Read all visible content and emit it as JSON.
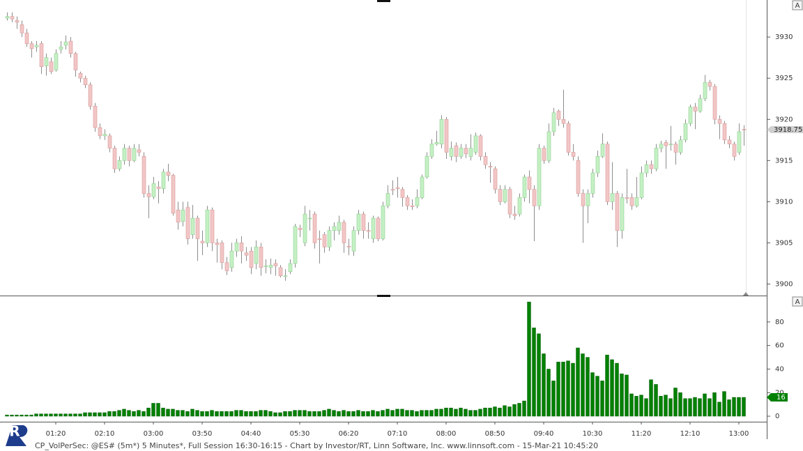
{
  "logo": "R",
  "chart_data": [
    {
      "type": "candlestick",
      "button": "A",
      "up_color": "#c4f0c4",
      "down_color": "#f2c6c6",
      "wick_color": "#8c8c8c",
      "ylim": [
        3898.6,
        3934.5
      ],
      "yticks": [
        3900,
        3905,
        3910,
        3915,
        3920,
        3925,
        3930
      ],
      "open": [
        3932.3,
        3932.5,
        3932,
        3931.5,
        3930.5,
        3929.2,
        3928.8,
        3929.2,
        3926.5,
        3927,
        3926,
        3928.5,
        3929,
        3929.5,
        3928,
        3925.6,
        3925,
        3924.2,
        3921.6,
        3919,
        3918,
        3918,
        3916.5,
        3914,
        3915,
        3916.5,
        3915,
        3916.3,
        3915.5,
        3911,
        3910.6,
        3911.8,
        3911.6,
        3913.6,
        3913.2,
        3909,
        3907.6,
        3909.3,
        3906,
        3908,
        3905.2,
        3905,
        3909,
        3905,
        3905,
        3902.6,
        3902,
        3904,
        3905,
        3903.8,
        3904,
        3902.5,
        3904.5,
        3902.2,
        3902,
        3902.5,
        3902,
        3901,
        3901.5,
        3902.5,
        3906.8,
        3905,
        3908,
        3908.5,
        3905.5,
        3906,
        3904.5,
        3906.5,
        3906.5,
        3907.5,
        3904.6,
        3904,
        3906.5,
        3908.5,
        3906.5,
        3905.5,
        3908,
        3905.5,
        3909.5,
        3911.5,
        3911.7,
        3911.5,
        3910.5,
        3909.5,
        3909.5,
        3910.5,
        3913,
        3915.5,
        3917,
        3917,
        3920,
        3915.5,
        3916.8,
        3915.5,
        3916.5,
        3915.5,
        3916,
        3918,
        3915.5,
        3914.3,
        3914,
        3911.5,
        3910,
        3911.5,
        3908.5,
        3908.5,
        3910.5,
        3913,
        3911.5,
        3909.5,
        3916.5,
        3915,
        3918.5,
        3921,
        3920,
        3919.5,
        3916,
        3915,
        3911,
        3909.5,
        3911,
        3913.5,
        3915.5,
        3917,
        3910,
        3911,
        3906.5,
        3910.5,
        3910.5,
        3909.5,
        3910.5,
        3913.5,
        3914.5,
        3914,
        3916.5,
        3917.2,
        3917,
        3917,
        3916,
        3917.5,
        3919.5,
        3921.5,
        3921,
        3922.5,
        3924.5,
        3924,
        3920,
        3919.5,
        3917.5,
        3917,
        3916,
        3918.8
      ],
      "high": [
        3933,
        3933,
        3932.5,
        3932,
        3931,
        3929.5,
        3929.5,
        3929.5,
        3928,
        3927.5,
        3928.5,
        3929.5,
        3930.2,
        3930,
        3928.2,
        3925.8,
        3925.3,
        3924.5,
        3922,
        3919.5,
        3918.8,
        3918.3,
        3916.8,
        3915.5,
        3917,
        3916.8,
        3917,
        3917,
        3916,
        3912,
        3913,
        3912.5,
        3914,
        3914.6,
        3913.4,
        3910,
        3910,
        3910,
        3909.6,
        3908.3,
        3906.5,
        3909.5,
        3909.3,
        3905.5,
        3905.3,
        3903.3,
        3905,
        3905.5,
        3905.8,
        3904.5,
        3904.5,
        3905.3,
        3905,
        3903,
        3903.1,
        3903,
        3902.3,
        3901.8,
        3903,
        3907.3,
        3907.2,
        3909.5,
        3909,
        3908.8,
        3906.5,
        3906.3,
        3907,
        3907.5,
        3908.3,
        3907.8,
        3905.5,
        3907,
        3909,
        3908.8,
        3907.5,
        3908.3,
        3908.2,
        3910,
        3912,
        3912.6,
        3913,
        3911.8,
        3910.8,
        3910.3,
        3911.5,
        3913.3,
        3916,
        3917.6,
        3918.6,
        3920.5,
        3920.3,
        3917.3,
        3917.2,
        3917,
        3917,
        3918.2,
        3918.4,
        3918.2,
        3916,
        3914.8,
        3914.3,
        3912,
        3912,
        3911.8,
        3909.5,
        3911,
        3913.3,
        3913.8,
        3912,
        3917,
        3916.8,
        3919.5,
        3921.4,
        3921.2,
        3923.6,
        3919.8,
        3917,
        3915.5,
        3911.5,
        3911.5,
        3914,
        3916.2,
        3918.3,
        3917.3,
        3914.8,
        3911.3,
        3911,
        3914,
        3911,
        3913,
        3914.3,
        3915,
        3915,
        3917,
        3917.4,
        3917.5,
        3919.2,
        3917.3,
        3918,
        3920,
        3921.8,
        3922,
        3923,
        3925.4,
        3924.8,
        3924.3,
        3920.5,
        3919.8,
        3918,
        3917.3,
        3919.5,
        3919.3
      ],
      "low": [
        3932,
        3931.8,
        3931,
        3930,
        3928.8,
        3927.5,
        3928.2,
        3925.5,
        3925.3,
        3925.5,
        3925.8,
        3928,
        3928.5,
        3927.5,
        3925.2,
        3924.5,
        3923.8,
        3921.2,
        3918.5,
        3917.6,
        3917.5,
        3916,
        3913.5,
        3913.7,
        3914.5,
        3914.3,
        3914.8,
        3915.5,
        3910.5,
        3908,
        3910.3,
        3909.8,
        3911,
        3912.5,
        3908.3,
        3906.6,
        3907,
        3904.8,
        3905.5,
        3902.8,
        3903.5,
        3904.5,
        3904,
        3902.6,
        3901.8,
        3901.1,
        3901.5,
        3903.3,
        3902.5,
        3902.8,
        3901.2,
        3901.8,
        3901,
        3901.3,
        3901.2,
        3901,
        3900.8,
        3900.4,
        3901.2,
        3902,
        3905.7,
        3904.6,
        3906.5,
        3904.3,
        3902.5,
        3903.8,
        3904,
        3905.3,
        3906,
        3903.8,
        3903.5,
        3903.4,
        3906,
        3905.5,
        3905.5,
        3905,
        3905.2,
        3905.3,
        3909.2,
        3910.8,
        3910.5,
        3909.4,
        3909,
        3909,
        3909.2,
        3910.3,
        3912.8,
        3915.2,
        3916.8,
        3916.5,
        3915.2,
        3915,
        3914.8,
        3915.2,
        3915.3,
        3915,
        3915.7,
        3915,
        3914,
        3912.3,
        3911,
        3909.6,
        3909.8,
        3908,
        3907.8,
        3908.2,
        3910,
        3909.8,
        3905.2,
        3909,
        3914.6,
        3914.7,
        3918,
        3919.2,
        3919,
        3915.6,
        3915,
        3910.6,
        3905,
        3907.4,
        3910.5,
        3913,
        3915.3,
        3909.6,
        3909,
        3904.5,
        3905.5,
        3909.8,
        3909,
        3909.3,
        3910.3,
        3913,
        3913.4,
        3913.7,
        3916,
        3914,
        3916.2,
        3914.5,
        3915.7,
        3917.2,
        3919.2,
        3918.8,
        3920.8,
        3922.2,
        3923.5,
        3919.4,
        3917.6,
        3917,
        3916.5,
        3915,
        3915.7,
        3916.8
      ],
      "close": [
        3932.5,
        3932.2,
        3931.8,
        3930.5,
        3929.2,
        3928.6,
        3929,
        3926.4,
        3927.5,
        3925.8,
        3928,
        3928.8,
        3929.4,
        3928,
        3926,
        3925,
        3924.2,
        3921.6,
        3919,
        3918,
        3918.2,
        3916.5,
        3914,
        3915,
        3916.5,
        3915,
        3916.5,
        3916,
        3911,
        3910.6,
        3912.2,
        3911.6,
        3913.6,
        3913.2,
        3908.6,
        3907.5,
        3909,
        3905.5,
        3908,
        3905.5,
        3905,
        3909,
        3905,
        3904.8,
        3902.6,
        3901.6,
        3904,
        3905,
        3904,
        3903.5,
        3902,
        3904.5,
        3902,
        3902.2,
        3902.3,
        3902.2,
        3901,
        3901,
        3902.5,
        3907,
        3906.6,
        3908.5,
        3908,
        3905,
        3905.4,
        3904.5,
        3906.5,
        3907,
        3907.5,
        3905,
        3904.5,
        3906.5,
        3908.5,
        3906.5,
        3906.4,
        3908,
        3905.5,
        3909.5,
        3911,
        3911.4,
        3911.6,
        3910.5,
        3909.5,
        3909.4,
        3910.5,
        3913,
        3915.5,
        3917,
        3917.2,
        3920,
        3916,
        3916.5,
        3915.5,
        3916.5,
        3915.8,
        3916.5,
        3918,
        3915.5,
        3914.5,
        3914.2,
        3911.5,
        3910,
        3911.5,
        3908.5,
        3908.3,
        3910.5,
        3913,
        3911.5,
        3909.5,
        3916.5,
        3915,
        3918.5,
        3920.8,
        3920,
        3919.5,
        3916,
        3915.5,
        3911,
        3909.5,
        3911,
        3913.5,
        3915.5,
        3917,
        3910,
        3911,
        3906.5,
        3910.5,
        3910.4,
        3909.5,
        3910.5,
        3913.5,
        3914.5,
        3914,
        3916.5,
        3917,
        3916.8,
        3917,
        3916,
        3917.5,
        3919.5,
        3921.5,
        3921,
        3922.5,
        3924.5,
        3924,
        3920,
        3919.5,
        3917.5,
        3917,
        3915.5,
        3918.5,
        3918.75
      ]
    },
    {
      "type": "bar",
      "title": "CP_VolPerSec: @ES# (5m*) 5 Minutes*, Full Session 16:30-16:15 - Chart by Investor/RT, Linn Software, Inc. www.linnsoft.com - 15-Mar-21 10:45:20",
      "button": "A",
      "color": "#008000",
      "ylim": [
        -4.7,
        101.8
      ],
      "yticks": [
        0,
        20,
        40,
        60,
        80
      ],
      "categories": [
        null,
        null,
        null,
        null,
        null,
        null,
        null,
        null,
        null,
        null,
        "01:20",
        null,
        null,
        null,
        null,
        null,
        null,
        null,
        null,
        null,
        "02:10",
        null,
        null,
        null,
        null,
        null,
        null,
        null,
        null,
        null,
        "03:00",
        null,
        null,
        null,
        null,
        null,
        null,
        null,
        null,
        null,
        "03:50",
        null,
        null,
        null,
        null,
        null,
        null,
        null,
        null,
        null,
        "04:40",
        null,
        null,
        null,
        null,
        null,
        null,
        null,
        null,
        null,
        "05:30",
        null,
        null,
        null,
        null,
        null,
        null,
        null,
        null,
        null,
        "06:20",
        null,
        null,
        null,
        null,
        null,
        null,
        null,
        null,
        null,
        "07:10",
        null,
        null,
        null,
        null,
        null,
        null,
        null,
        null,
        null,
        "08:00",
        null,
        null,
        null,
        null,
        null,
        null,
        null,
        null,
        null,
        "08:50",
        null,
        null,
        null,
        null,
        null,
        null,
        null,
        null,
        null,
        "09:40",
        null,
        null,
        null,
        null,
        null,
        null,
        null,
        null,
        null,
        "10:30",
        null,
        null,
        null,
        null,
        null,
        null,
        null,
        null,
        null,
        "11:20",
        null,
        null,
        null,
        null,
        null,
        null,
        null,
        null,
        null,
        "12:10",
        null,
        null,
        null,
        null,
        null,
        null,
        null,
        null,
        null,
        "13:00",
        null
      ],
      "values": [
        1,
        1,
        1,
        1,
        1,
        1,
        2,
        2,
        2,
        2,
        2,
        2,
        2,
        2,
        2,
        2,
        3,
        3,
        3,
        3,
        3,
        4,
        4,
        5,
        6,
        5,
        4,
        5,
        4,
        7,
        11,
        11,
        7,
        6,
        6,
        5,
        5,
        4,
        6,
        5,
        4,
        4,
        5,
        4,
        4,
        4,
        4,
        5,
        5,
        4,
        4,
        4,
        5,
        5,
        4,
        3,
        3,
        4,
        4,
        5,
        5,
        5,
        4,
        4,
        4,
        5,
        6,
        5,
        4,
        5,
        4,
        4,
        5,
        4,
        4,
        5,
        4,
        5,
        6,
        5,
        6,
        6,
        5,
        5,
        4,
        5,
        5,
        5,
        6,
        6,
        7,
        7,
        6,
        7,
        6,
        5,
        5,
        6,
        7,
        7,
        8,
        7,
        9,
        8,
        10,
        11,
        13,
        97,
        75,
        70,
        53,
        40,
        30,
        46,
        46,
        47,
        45,
        58,
        53,
        50,
        37,
        34,
        30,
        52,
        48,
        45,
        36,
        35,
        19,
        17,
        18,
        15,
        31,
        27,
        17,
        18,
        15,
        24,
        20,
        15,
        15,
        16,
        15,
        19,
        15,
        20,
        12,
        21,
        14,
        16,
        16,
        16
      ]
    }
  ]
}
